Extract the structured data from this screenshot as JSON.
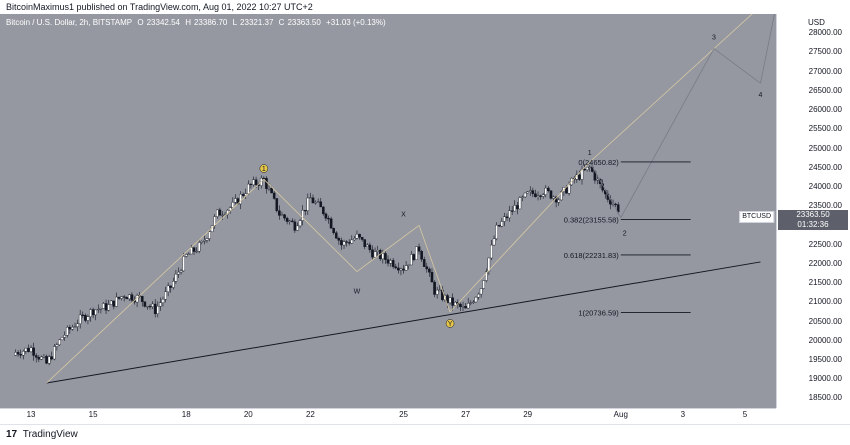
{
  "header": {
    "published_text": "BitcoinMaximus1 published on TradingView.com, Aug 01, 2022 10:27 UTC+2"
  },
  "legend": {
    "symbol": "Bitcoin / U.S. Dollar, 2h, BITSTAMP",
    "open_label": "O",
    "open": "23342.54",
    "high_label": "H",
    "high": "23386.70",
    "low_label": "L",
    "low": "23321.37",
    "close_label": "C",
    "close": "23363.50",
    "change": "+31.03 (+0.13%)"
  },
  "price_axis": {
    "currency": "USD",
    "ticks": [
      "28000.00",
      "27500.00",
      "27000.00",
      "26500.00",
      "26000.00",
      "25500.00",
      "25000.00",
      "24500.00",
      "24000.00",
      "23500.00",
      "23000.00",
      "22500.00",
      "22000.00",
      "21500.00",
      "21000.00",
      "20500.00",
      "20000.00",
      "19500.00",
      "19000.00",
      "18500.00"
    ],
    "symbol_tag": "BTCUSD",
    "last_price": "23363.50",
    "countdown": "01:32:36"
  },
  "time_axis": {
    "ticks": [
      "13",
      "15",
      "18",
      "20",
      "22",
      "25",
      "27",
      "29",
      "Aug",
      "3",
      "5"
    ]
  },
  "footer": {
    "brand": "TradingView",
    "logo_glyph": "17"
  },
  "colors": {
    "background": "#9598a1",
    "candle_up": "#ffffff",
    "candle_down": "#131722",
    "trendline": "#131722",
    "channel_line": "#d9c9a3",
    "projection_line": "#787b86",
    "fib_line": "#131722",
    "wave_marker_fill": "#e8c84a"
  },
  "chart_data": {
    "type": "line",
    "title": "Bitcoin / U.S. Dollar, 2h, BITSTAMP",
    "ylabel": "USD",
    "ylim": [
      18250,
      28500
    ],
    "x_range": [
      "2022-07-12",
      "2022-08-06"
    ],
    "x_ticks": [
      "13",
      "15",
      "18",
      "20",
      "22",
      "25",
      "27",
      "29",
      "Aug",
      "3",
      "5"
    ],
    "y_ticks": [
      28000,
      27500,
      27000,
      26500,
      26000,
      25500,
      25000,
      24500,
      24000,
      23500,
      23000,
      22500,
      22000,
      21500,
      21000,
      20500,
      20000,
      19500,
      19000,
      18500
    ],
    "series": [
      {
        "type": "candlestick-approx",
        "x": [
          "2022-07-12T12:00",
          "2022-07-13",
          "2022-07-13T12:00",
          "2022-07-14",
          "2022-07-14T12:00",
          "2022-07-15",
          "2022-07-15T12:00",
          "2022-07-16",
          "2022-07-16T12:00",
          "2022-07-17",
          "2022-07-17T12:00",
          "2022-07-18",
          "2022-07-18T12:00",
          "2022-07-19",
          "2022-07-19T12:00",
          "2022-07-20",
          "2022-07-20T12:00",
          "2022-07-21",
          "2022-07-21T12:00",
          "2022-07-22",
          "2022-07-22T12:00",
          "2022-07-23",
          "2022-07-23T12:00",
          "2022-07-24",
          "2022-07-24T12:00",
          "2022-07-25",
          "2022-07-25T12:00",
          "2022-07-26",
          "2022-07-26T12:00",
          "2022-07-27",
          "2022-07-27T12:00",
          "2022-07-28",
          "2022-07-28T12:00",
          "2022-07-29",
          "2022-07-29T12:00",
          "2022-07-30",
          "2022-07-30T12:00",
          "2022-07-31",
          "2022-07-31T12:00",
          "2022-08-01"
        ],
        "values": [
          19700,
          19800,
          19400,
          20100,
          20500,
          20800,
          20900,
          21200,
          21100,
          20800,
          21400,
          22200,
          22500,
          23300,
          23500,
          24000,
          24200,
          23300,
          23000,
          23700,
          23300,
          22500,
          22700,
          22300,
          22100,
          21900,
          22400,
          21300,
          21000,
          20800,
          21400,
          22900,
          23400,
          23800,
          23900,
          23700,
          24200,
          24500,
          23800,
          23363
        ]
      }
    ],
    "fibonacci_levels": [
      {
        "ratio": "0",
        "label": "0(24650.82)",
        "price": 24650.82
      },
      {
        "ratio": "0.382",
        "label": "0.382(23155.58)",
        "price": 23155.58
      },
      {
        "ratio": "0.618",
        "label": "0.618(22231.83)",
        "price": 22231.83
      },
      {
        "ratio": "1",
        "label": "1(20736.59)",
        "price": 20736.59
      }
    ],
    "wave_labels": [
      "1",
      "2",
      "3",
      "4",
      "W",
      "X",
      "Y",
      "1"
    ],
    "trendline": {
      "start": {
        "x": "2022-07-13T12:00",
        "y": 18900
      },
      "end": {
        "x": "2022-08-05T12:00",
        "y": 22050
      }
    },
    "projection_points": [
      {
        "label": "2",
        "x": "2022-08-01",
        "y": 23200
      },
      {
        "label": "3",
        "x": "2022-08-04",
        "y": 27600
      },
      {
        "label": "4",
        "x": "2022-08-05T12:00",
        "y": 26700
      }
    ]
  }
}
